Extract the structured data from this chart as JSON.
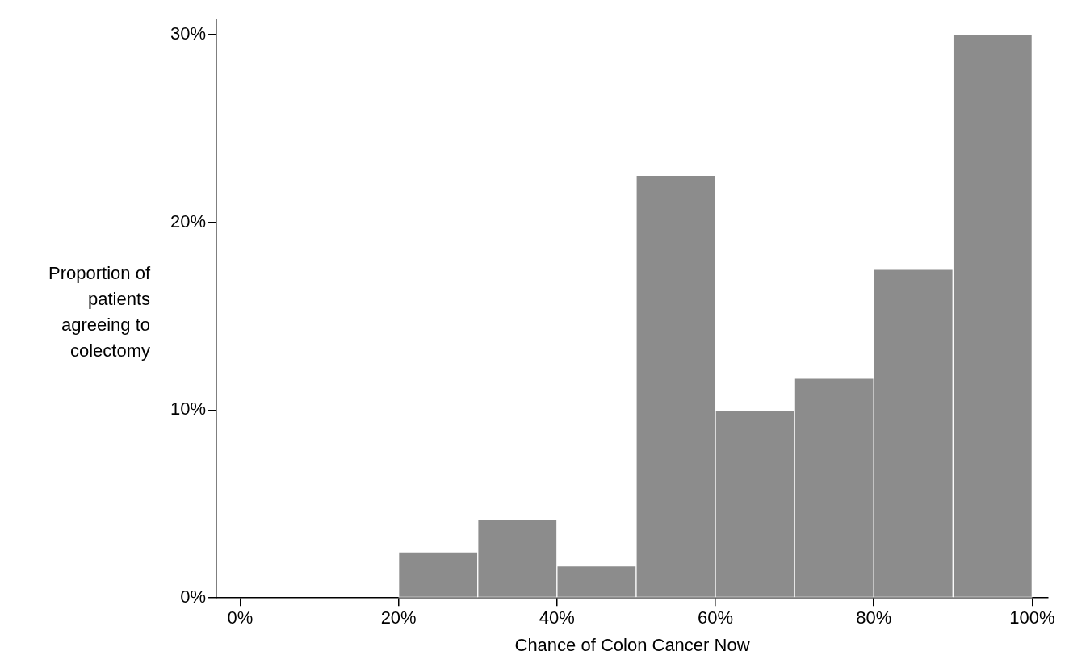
{
  "chart_data": {
    "type": "histogram",
    "xlabel": "Chance of Colon Cancer Now",
    "ylabel": "Proportion of patients agreeing to colectomy",
    "bins": [
      0,
      10,
      20,
      30,
      40,
      50,
      60,
      70,
      80,
      90,
      100
    ],
    "values": [
      0,
      0,
      2.45,
      4.2,
      1.7,
      22.5,
      10,
      11.7,
      17.5,
      30
    ],
    "color": "#8c8c8c",
    "xlim": [
      -3,
      102
    ],
    "ylim": [
      0,
      30.8
    ],
    "xticks": [
      {
        "value": 0,
        "label": "0%"
      },
      {
        "value": 20,
        "label": "20%"
      },
      {
        "value": 40,
        "label": "40%"
      },
      {
        "value": 60,
        "label": "60%"
      },
      {
        "value": 80,
        "label": "80%"
      },
      {
        "value": 100,
        "label": "100%"
      }
    ],
    "yticks": [
      {
        "value": 0,
        "label": "0%"
      },
      {
        "value": 10,
        "label": "10%"
      },
      {
        "value": 20,
        "label": "20%"
      },
      {
        "value": 30,
        "label": "30%"
      }
    ],
    "grid": false,
    "legend": false
  }
}
